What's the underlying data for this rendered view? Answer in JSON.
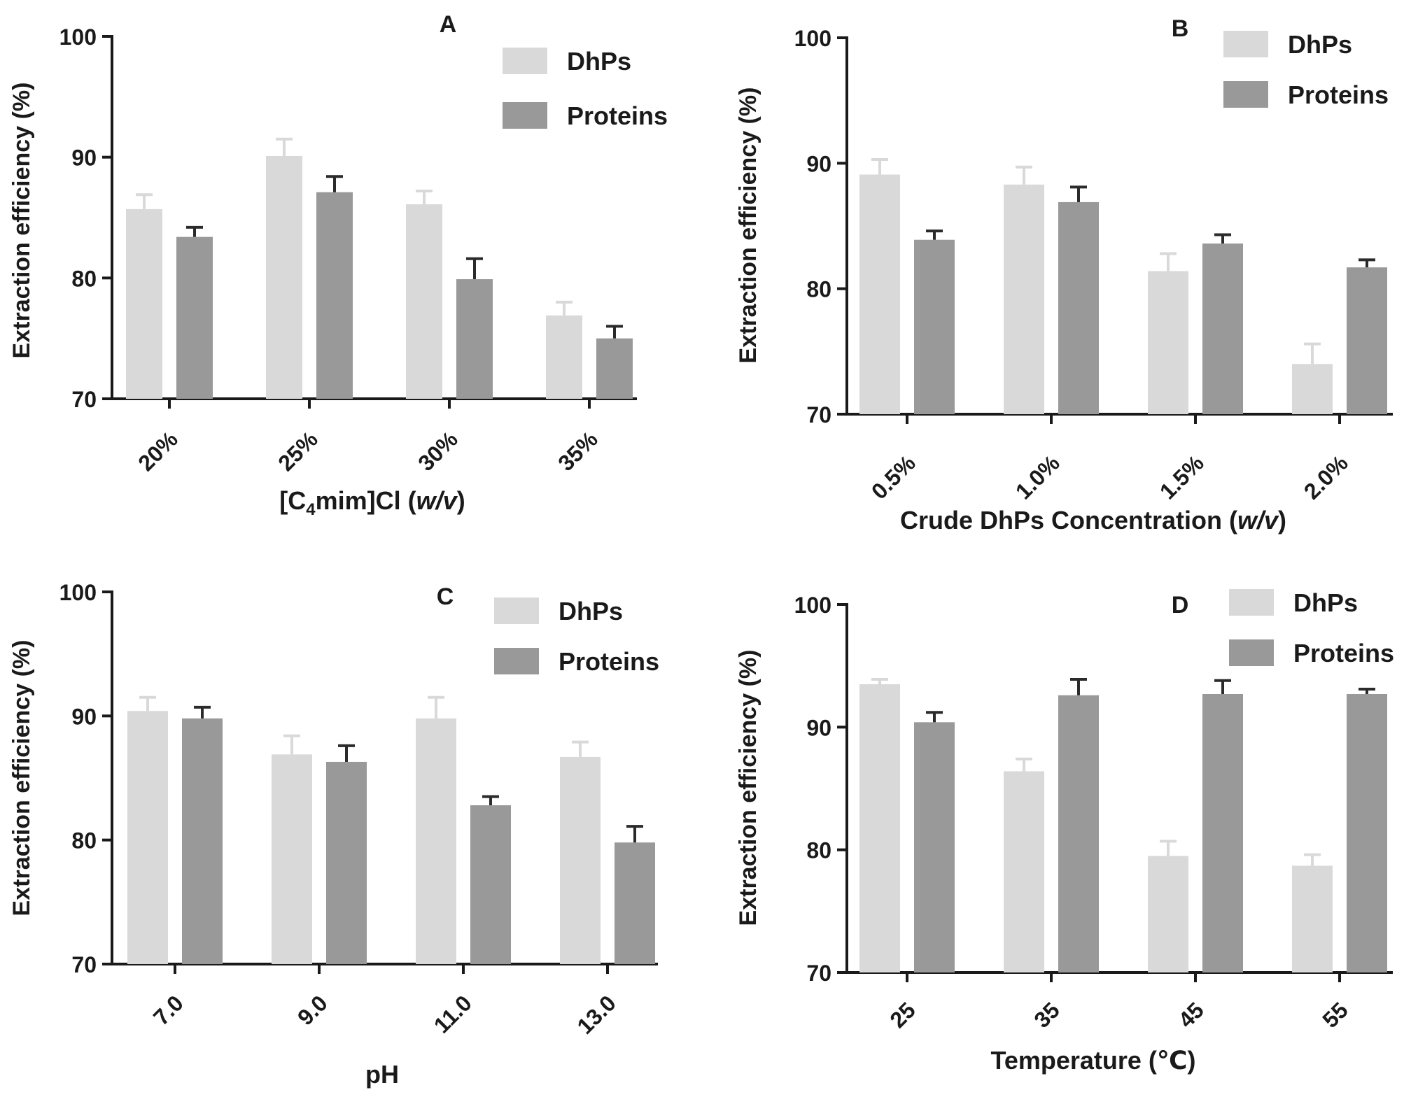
{
  "colors": {
    "dhps": "#d9d9d9",
    "proteins": "#999999",
    "dhps_err": "#d9d9d9",
    "proteins_err": "#2b2b2b",
    "axis": "#1a1a1a"
  },
  "chart_data": [
    {
      "id": "A",
      "panel_label": "A",
      "type": "bar",
      "xlabel_parts": [
        "[C",
        "4",
        "mim]Cl (",
        "w/v",
        ")"
      ],
      "ylabel": "Extraction efficiency (%)",
      "ylim": [
        70,
        100
      ],
      "yticks": [
        "70",
        "80",
        "90",
        "100"
      ],
      "categories": [
        "20%",
        "25%",
        "30%",
        "35%"
      ],
      "legend_position": "top-right",
      "series": [
        {
          "name": "DhPs",
          "values": [
            85.7,
            90.1,
            86.1,
            76.9
          ],
          "errors": [
            1.2,
            1.4,
            1.1,
            1.1
          ]
        },
        {
          "name": "Proteins",
          "values": [
            83.4,
            87.1,
            79.9,
            75.0
          ],
          "errors": [
            0.8,
            1.3,
            1.7,
            1.0
          ]
        }
      ]
    },
    {
      "id": "B",
      "panel_label": "B",
      "type": "bar",
      "xlabel_parts": [
        "Crude DhPs Concentration (",
        "w/v",
        ")"
      ],
      "ylabel": "Extraction efficiency (%)",
      "ylim": [
        70,
        100
      ],
      "yticks": [
        "70",
        "80",
        "90",
        "100"
      ],
      "categories": [
        "0.5%",
        "1.0%",
        "1.5%",
        "2.0%"
      ],
      "legend_position": "top-right",
      "series": [
        {
          "name": "DhPs",
          "values": [
            89.1,
            88.3,
            81.4,
            74.0
          ],
          "errors": [
            1.2,
            1.4,
            1.4,
            1.6
          ]
        },
        {
          "name": "Proteins",
          "values": [
            83.9,
            86.9,
            83.6,
            81.7
          ],
          "errors": [
            0.7,
            1.2,
            0.7,
            0.6
          ]
        }
      ]
    },
    {
      "id": "C",
      "panel_label": "C",
      "type": "bar",
      "xlabel_parts": [
        "pH"
      ],
      "ylabel": "Extraction efficiency (%)",
      "ylim": [
        70,
        100
      ],
      "yticks": [
        "70",
        "80",
        "90",
        "100"
      ],
      "categories": [
        "7.0",
        "9.0",
        "11.0",
        "13.0"
      ],
      "legend_position": "top-right",
      "series": [
        {
          "name": "DhPs",
          "values": [
            90.4,
            86.9,
            89.8,
            86.7
          ],
          "errors": [
            1.1,
            1.5,
            1.7,
            1.2
          ]
        },
        {
          "name": "Proteins",
          "values": [
            89.8,
            86.3,
            82.8,
            79.8
          ],
          "errors": [
            0.9,
            1.3,
            0.7,
            1.3
          ]
        }
      ]
    },
    {
      "id": "D",
      "panel_label": "D",
      "type": "bar",
      "xlabel_parts": [
        "Temperature (℃)"
      ],
      "ylabel": "Extraction efficiency (%)",
      "ylim": [
        70,
        100
      ],
      "yticks": [
        "70",
        "80",
        "90",
        "100"
      ],
      "categories": [
        "25",
        "35",
        "45",
        "55"
      ],
      "legend_position": "top-right",
      "series": [
        {
          "name": "DhPs",
          "values": [
            93.5,
            86.4,
            79.5,
            78.7
          ],
          "errors": [
            0.4,
            1.0,
            1.2,
            0.9
          ]
        },
        {
          "name": "Proteins",
          "values": [
            90.4,
            92.6,
            92.7,
            92.7
          ],
          "errors": [
            0.8,
            1.3,
            1.1,
            0.4
          ]
        }
      ]
    }
  ]
}
